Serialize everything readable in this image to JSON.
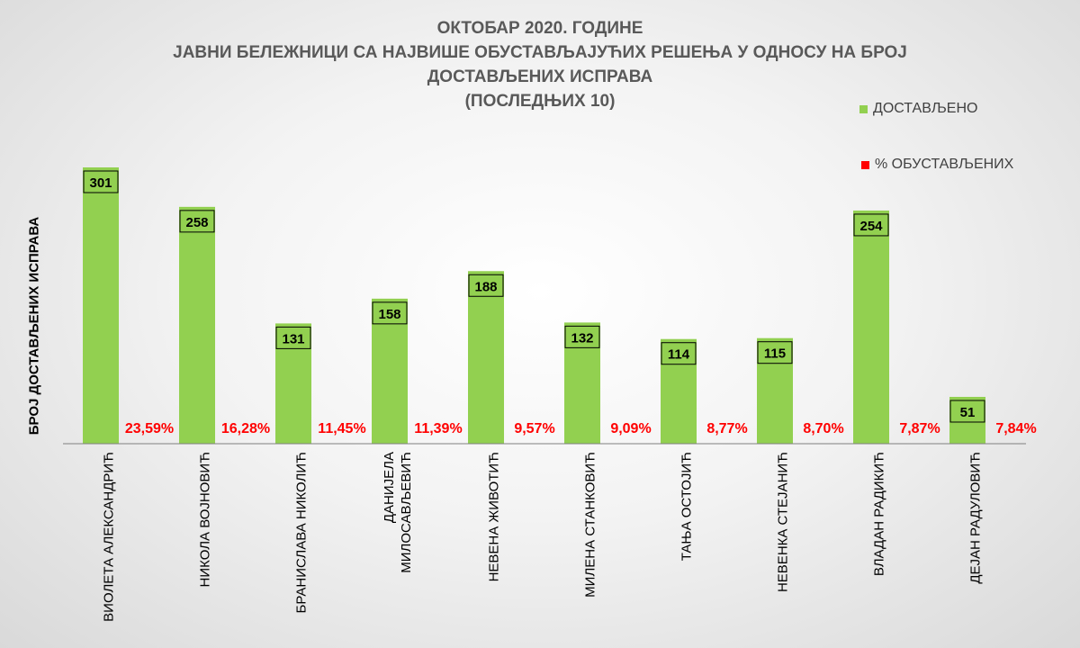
{
  "title_lines": [
    "ОКТОБАР 2020. ГОДИНЕ",
    "ЈАВНИ БЕЛЕЖНИЦИ СА НАЈВИШЕ ОБУСТАВЉАЈУЋИХ РЕШЕЊА У ОДНОСУ НА БРОЈ",
    "ДОСТАВЉЕНИХ ИСПРАВА",
    "(ПОСЛЕДЊИХ 10)"
  ],
  "legend": [
    {
      "label": "ДОСТАВЉЕНО",
      "color": "#92D050"
    },
    {
      "label": "% ОБУСТАВЉЕНИХ",
      "color": "#FF0000"
    }
  ],
  "colors": {
    "bar": "#92D050",
    "percent_text": "#FF0000",
    "title": "#595959"
  },
  "chart_data": {
    "type": "bar",
    "ylabel": "БРОЈ ДОСТАВЉЕНИХ ИСПРАВА",
    "categories": [
      [
        "ВИОЛЕТА АЛЕКСАНДРИЋ"
      ],
      [
        "НИКОЛА ВОЈНОВИЋ"
      ],
      [
        "БРАНИСЛАВА НИКОЛИЋ"
      ],
      [
        "ДАНИЈЕЛА",
        "МИЛОСАВЉЕВИЋ"
      ],
      [
        "НЕВЕНА ЖИВОТИЋ"
      ],
      [
        "МИЛЕНА СТАНКОВИЋ"
      ],
      [
        "ТАЊА ОСТОЈИЋ"
      ],
      [
        "НЕВЕНКА СТЕЈАНИЋ"
      ],
      [
        "ВЛАДАН РАДИКИЋ"
      ],
      [
        "ДЕЈАН РАДУЛОВИЋ"
      ]
    ],
    "series": [
      {
        "name": "ДОСТАВЉЕНО",
        "values": [
          301,
          258,
          131,
          158,
          188,
          132,
          114,
          115,
          254,
          51
        ]
      },
      {
        "name": "% ОБУСТАВЉЕНИХ",
        "values": [
          23.59,
          16.28,
          11.45,
          11.39,
          9.57,
          9.09,
          8.77,
          8.7,
          7.87,
          7.84
        ],
        "labels": [
          "23,59%",
          "16,28%",
          "11,45%",
          "11,39%",
          "9,57%",
          "9,09%",
          "8,77%",
          "8,70%",
          "7,87%",
          "7,84%"
        ]
      }
    ],
    "ylim": [
      0,
      301
    ],
    "grid": false,
    "legend_position": "top-right"
  }
}
